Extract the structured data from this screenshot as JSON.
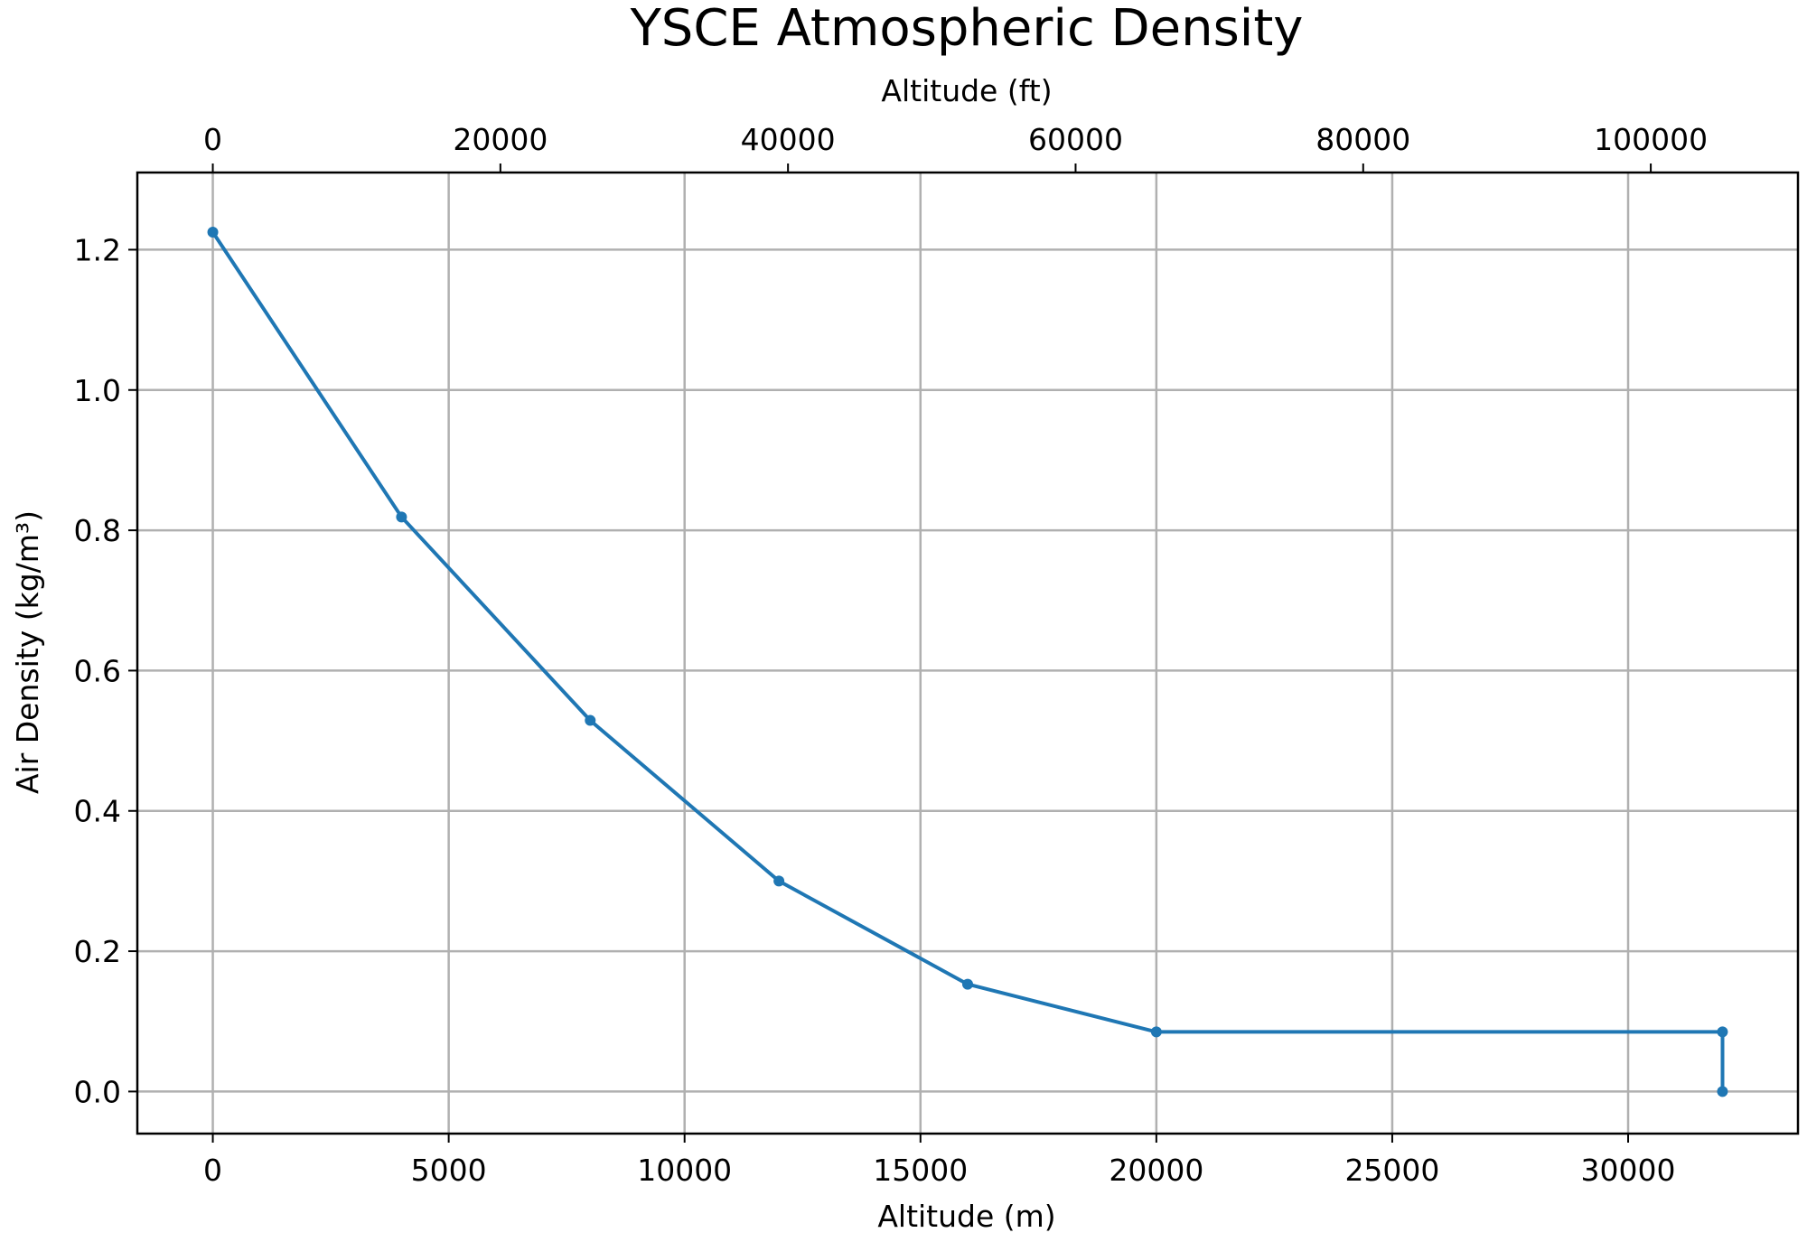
{
  "chart_data": {
    "type": "line",
    "title": "YSCE Atmospheric Density",
    "xlabel": "Altitude (m)",
    "ylabel": "Air Density (kg/m³)",
    "secondary_xlabel": "Altitude (ft)",
    "xlim": [
      -1600,
      33600
    ],
    "ylim": [
      -0.06,
      1.31
    ],
    "secondary_xlim_ft": [
      -5249,
      110236
    ],
    "x_ticks": [
      0,
      5000,
      10000,
      15000,
      20000,
      25000,
      30000
    ],
    "x_tick_labels": [
      "0",
      "5000",
      "10000",
      "15000",
      "20000",
      "25000",
      "30000"
    ],
    "y_ticks": [
      0.0,
      0.2,
      0.4,
      0.6,
      0.8,
      1.0,
      1.2
    ],
    "y_tick_labels": [
      "0.0",
      "0.2",
      "0.4",
      "0.6",
      "0.8",
      "1.0",
      "1.2"
    ],
    "secondary_x_ticks_ft": [
      0,
      20000,
      40000,
      60000,
      80000,
      100000
    ],
    "secondary_x_tick_labels": [
      "0",
      "20000",
      "40000",
      "60000",
      "80000",
      "100000"
    ],
    "grid": true,
    "series": [
      {
        "color": "#1f77b4",
        "marker": "circle",
        "x": [
          0,
          4000,
          8000,
          12000,
          16000,
          20000,
          32000,
          32000
        ],
        "y": [
          1.225,
          0.819,
          0.529,
          0.3,
          0.153,
          0.085,
          0.085,
          0.0
        ]
      }
    ]
  }
}
